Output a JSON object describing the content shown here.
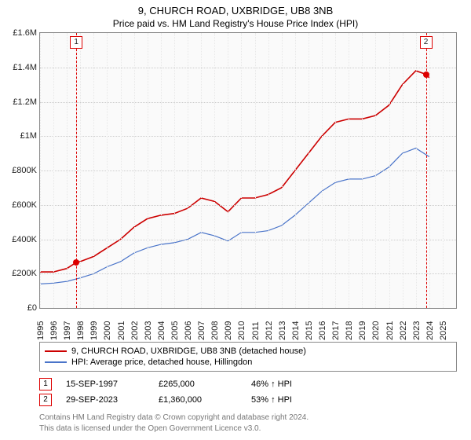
{
  "title": "9, CHURCH ROAD, UXBRIDGE, UB8 3NB",
  "subtitle": "Price paid vs. HM Land Registry's House Price Index (HPI)",
  "chart": {
    "type": "line",
    "background_color": "#fafafa",
    "grid_color": "#cccccc",
    "border_color": "#888888",
    "x": {
      "min": 1995,
      "max": 2026,
      "ticks": [
        1995,
        1996,
        1997,
        1998,
        1999,
        2000,
        2001,
        2002,
        2003,
        2004,
        2005,
        2006,
        2007,
        2008,
        2009,
        2010,
        2011,
        2012,
        2013,
        2014,
        2015,
        2016,
        2017,
        2018,
        2019,
        2020,
        2021,
        2022,
        2023,
        2024,
        2025
      ]
    },
    "y": {
      "min": 0,
      "max": 1600000,
      "ticks": [
        0,
        200000,
        400000,
        600000,
        800000,
        1000000,
        1200000,
        1400000,
        1600000
      ],
      "tick_labels": [
        "£0",
        "£200K",
        "£400K",
        "£600K",
        "£800K",
        "£1M",
        "£1.2M",
        "£1.4M",
        "£1.6M"
      ]
    },
    "series": [
      {
        "name": "9, CHURCH ROAD, UXBRIDGE, UB8 3NB (detached house)",
        "color": "#cc0000",
        "width": 1.6,
        "points": [
          [
            1995,
            210000
          ],
          [
            1996,
            210000
          ],
          [
            1997,
            230000
          ],
          [
            1997.7,
            265000
          ],
          [
            1998,
            270000
          ],
          [
            1999,
            300000
          ],
          [
            2000,
            350000
          ],
          [
            2001,
            400000
          ],
          [
            2002,
            470000
          ],
          [
            2003,
            520000
          ],
          [
            2004,
            540000
          ],
          [
            2005,
            550000
          ],
          [
            2006,
            580000
          ],
          [
            2007,
            640000
          ],
          [
            2008,
            620000
          ],
          [
            2009,
            560000
          ],
          [
            2010,
            640000
          ],
          [
            2011,
            640000
          ],
          [
            2012,
            660000
          ],
          [
            2013,
            700000
          ],
          [
            2014,
            800000
          ],
          [
            2015,
            900000
          ],
          [
            2016,
            1000000
          ],
          [
            2017,
            1080000
          ],
          [
            2018,
            1100000
          ],
          [
            2019,
            1100000
          ],
          [
            2020,
            1120000
          ],
          [
            2021,
            1180000
          ],
          [
            2022,
            1300000
          ],
          [
            2023,
            1380000
          ],
          [
            2023.75,
            1360000
          ],
          [
            2024,
            1340000
          ]
        ]
      },
      {
        "name": "HPI: Average price, detached house, Hillingdon",
        "color": "#4a74c9",
        "width": 1.2,
        "points": [
          [
            1995,
            140000
          ],
          [
            1996,
            145000
          ],
          [
            1997,
            155000
          ],
          [
            1998,
            175000
          ],
          [
            1999,
            200000
          ],
          [
            2000,
            240000
          ],
          [
            2001,
            270000
          ],
          [
            2002,
            320000
          ],
          [
            2003,
            350000
          ],
          [
            2004,
            370000
          ],
          [
            2005,
            380000
          ],
          [
            2006,
            400000
          ],
          [
            2007,
            440000
          ],
          [
            2008,
            420000
          ],
          [
            2009,
            390000
          ],
          [
            2010,
            440000
          ],
          [
            2011,
            440000
          ],
          [
            2012,
            450000
          ],
          [
            2013,
            480000
          ],
          [
            2014,
            540000
          ],
          [
            2015,
            610000
          ],
          [
            2016,
            680000
          ],
          [
            2017,
            730000
          ],
          [
            2018,
            750000
          ],
          [
            2019,
            750000
          ],
          [
            2020,
            770000
          ],
          [
            2021,
            820000
          ],
          [
            2022,
            900000
          ],
          [
            2023,
            930000
          ],
          [
            2024,
            880000
          ]
        ]
      }
    ],
    "markers": [
      {
        "n": "1",
        "year": 1997.7,
        "price": 265000
      },
      {
        "n": "2",
        "year": 2023.75,
        "price": 1360000
      }
    ]
  },
  "legend": [
    {
      "color": "#cc0000",
      "label": "9, CHURCH ROAD, UXBRIDGE, UB8 3NB (detached house)"
    },
    {
      "color": "#4a74c9",
      "label": "HPI: Average price, detached house, Hillingdon"
    }
  ],
  "transactions": [
    {
      "n": "1",
      "date": "15-SEP-1997",
      "price": "£265,000",
      "vs_hpi": "46% ↑ HPI"
    },
    {
      "n": "2",
      "date": "29-SEP-2023",
      "price": "£1,360,000",
      "vs_hpi": "53% ↑ HPI"
    }
  ],
  "attribution": {
    "line1": "Contains HM Land Registry data © Crown copyright and database right 2024.",
    "line2": "This data is licensed under the Open Government Licence v3.0."
  }
}
